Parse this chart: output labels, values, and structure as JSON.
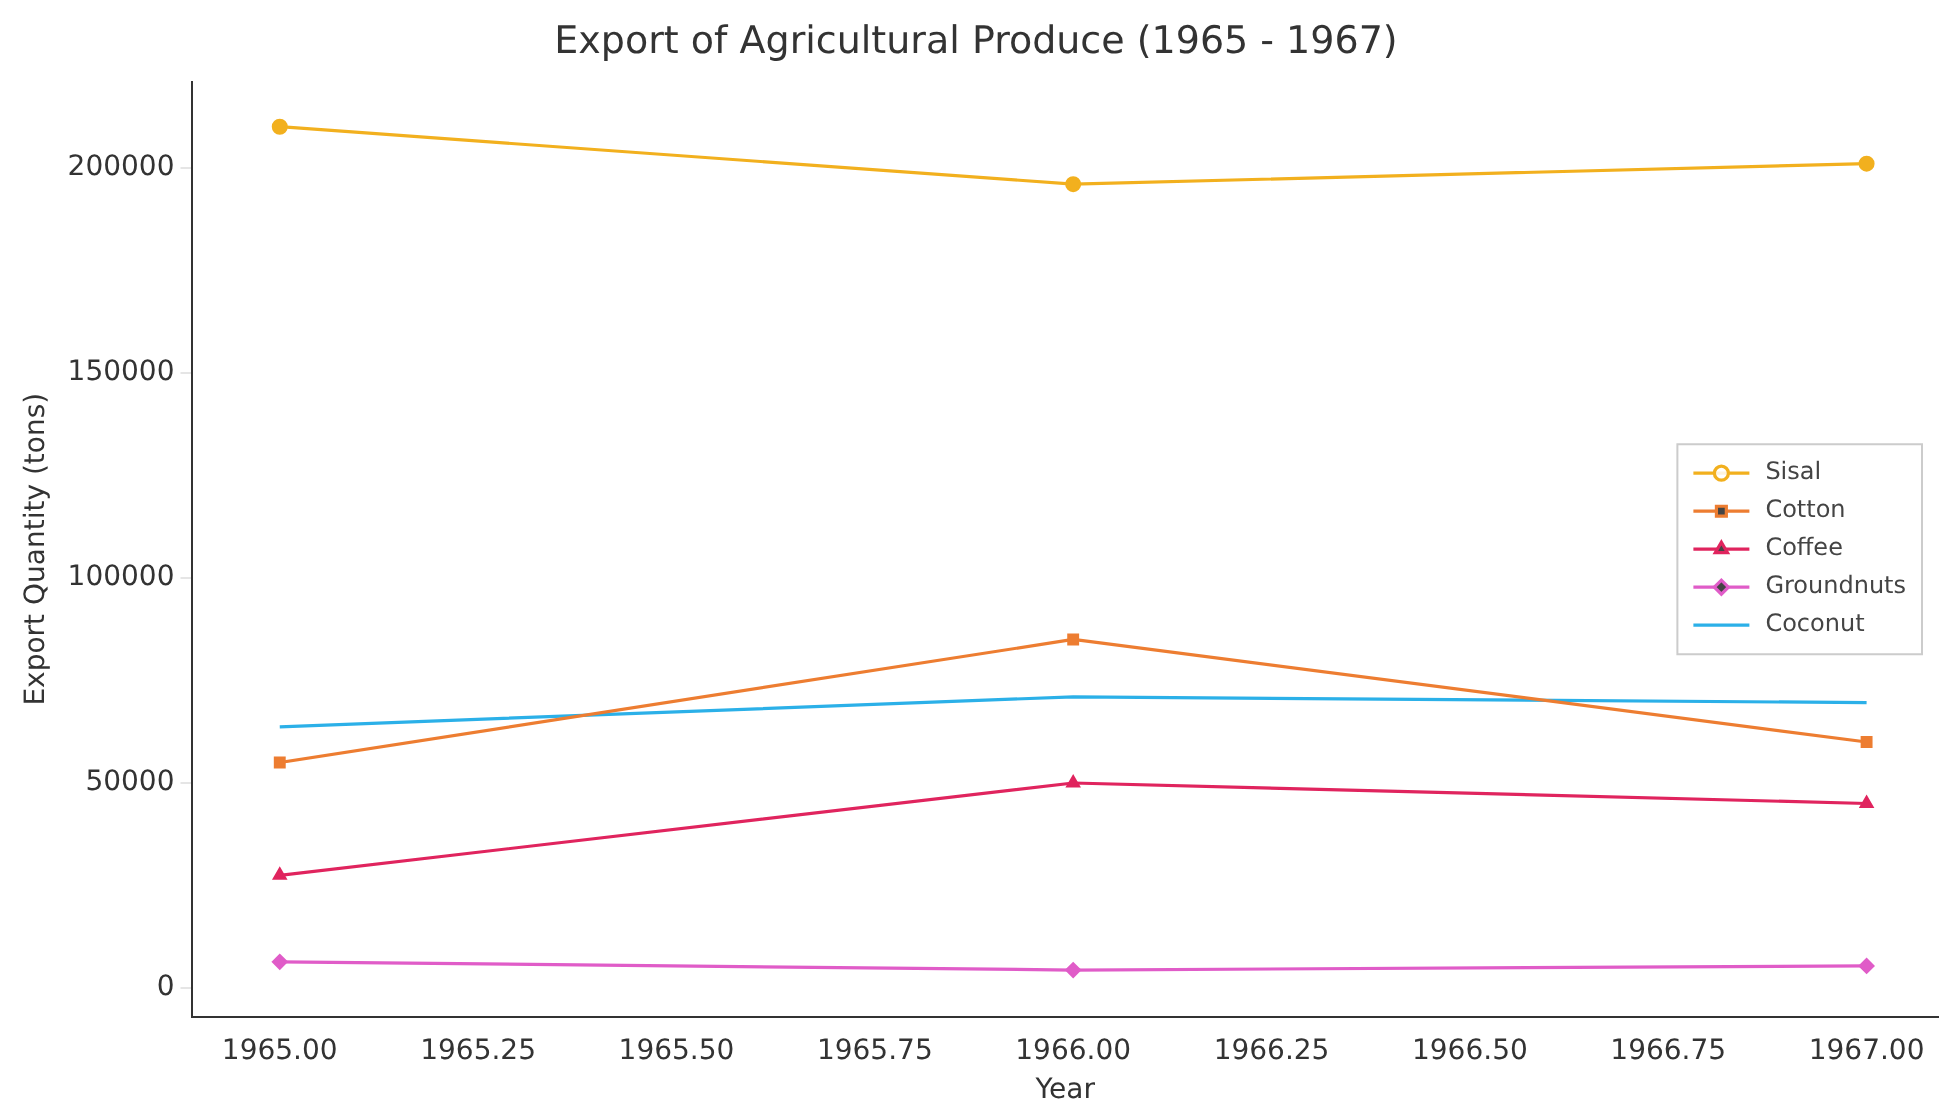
{
  "chart_data": {
    "type": "line",
    "title": "Export of Agricultural Produce (1965 - 1967)",
    "xlabel": "Year",
    "ylabel": "Export Quantity (tons)",
    "x": [
      1965,
      1966,
      1967
    ],
    "series": [
      {
        "name": "Sisal",
        "color": "#f2b01e",
        "marker": "circle",
        "values": [
          210000,
          196000,
          201000
        ]
      },
      {
        "name": "Cotton",
        "color": "#ed7d31",
        "marker": "square",
        "values": [
          55000,
          85000,
          60000
        ]
      },
      {
        "name": "Coffee",
        "color": "#e0245e",
        "marker": "triangle",
        "values": [
          27500,
          50000,
          45000
        ]
      },
      {
        "name": "Groundnuts",
        "color": "#e05cc8",
        "marker": "diamond",
        "values": [
          6400,
          4400,
          5400
        ]
      },
      {
        "name": "Coconut",
        "color": "#2bb0e8",
        "marker": "none",
        "values": [
          63700,
          71000,
          69600
        ]
      }
    ],
    "xlim": [
      1964.89,
      1967.09
    ],
    "xticks": [
      {
        "value": 1965,
        "label": "1965.00"
      },
      {
        "value": 1965.25,
        "label": "1965.25"
      },
      {
        "value": 1965.5,
        "label": "1965.50"
      },
      {
        "value": 1965.75,
        "label": "1965.75"
      },
      {
        "value": 1966,
        "label": "1966.00"
      },
      {
        "value": 1966.25,
        "label": "1966.25"
      },
      {
        "value": 1966.5,
        "label": "1966.50"
      },
      {
        "value": 1966.75,
        "label": "1966.75"
      },
      {
        "value": 1967,
        "label": "1967.00"
      }
    ],
    "ylim": [
      -7000,
      221000
    ],
    "yticks": [
      0,
      50000,
      100000,
      150000,
      200000
    ],
    "grid": false,
    "legend": "right",
    "line_style": "solid"
  }
}
